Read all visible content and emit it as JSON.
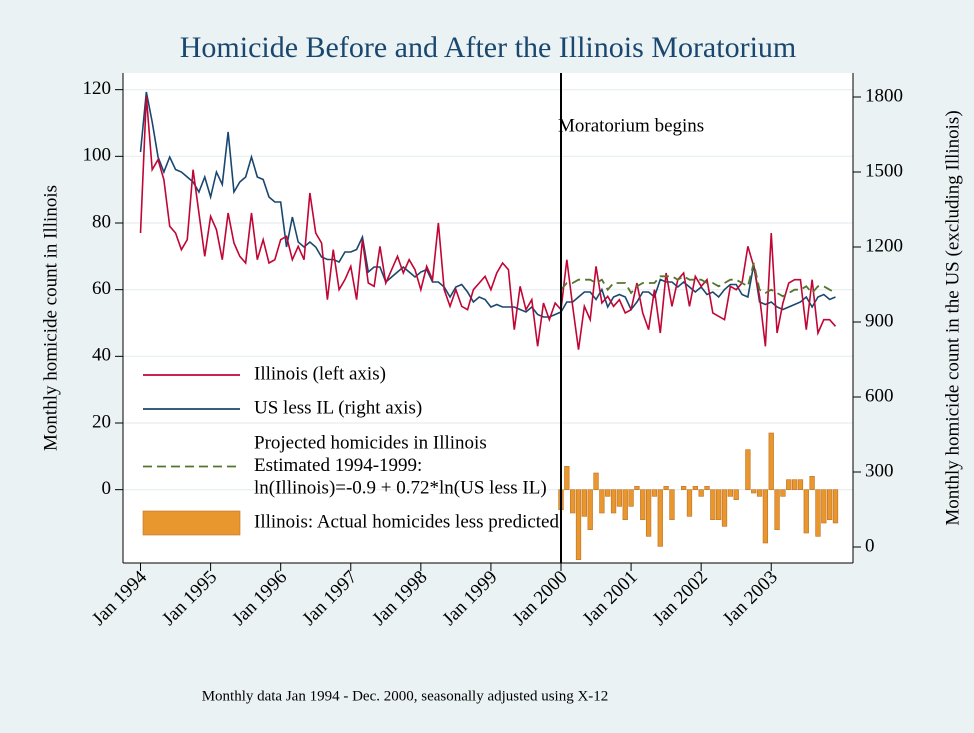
{
  "chart_data": {
    "type": "line",
    "title": "Homicide Before and After the Illinois Moratorium",
    "y_label": "Monthly homicide count in Illinois",
    "y2_label": "Monthly homicide count in the US (excluding Illinois)",
    "caption": "Monthly data Jan 1994 - Dec. 2000, seasonally adjusted using X-12",
    "annotation": {
      "text": "Moratorium begins",
      "x": "2000-01"
    },
    "grid": true,
    "legend": "bottom-left",
    "xlim": [
      "1993-10",
      "2004-03"
    ],
    "xticks": [
      {
        "value": "1994-01",
        "label": "Jan 1994"
      },
      {
        "value": "1995-01",
        "label": "Jan 1995"
      },
      {
        "value": "1996-01",
        "label": "Jan 1996"
      },
      {
        "value": "1997-01",
        "label": "Jan 1997"
      },
      {
        "value": "1998-01",
        "label": "Jan 1998"
      },
      {
        "value": "1999-01",
        "label": "Jan 1999"
      },
      {
        "value": "2000-01",
        "label": "Jan 2000"
      },
      {
        "value": "2001-01",
        "label": "Jan 2001"
      },
      {
        "value": "2002-01",
        "label": "Jan 2002"
      },
      {
        "value": "2003-01",
        "label": "Jan 2003"
      }
    ],
    "ylim": [
      -22,
      125
    ],
    "yticks": [
      0,
      20,
      40,
      60,
      80,
      100,
      120
    ],
    "y2lim": [
      -64,
      1896
    ],
    "y2ticks": [
      0,
      300,
      600,
      900,
      1200,
      1500,
      1800
    ],
    "x": [
      "1994-01",
      "1994-02",
      "1994-03",
      "1994-04",
      "1994-05",
      "1994-06",
      "1994-07",
      "1994-08",
      "1994-09",
      "1994-10",
      "1994-11",
      "1994-12",
      "1995-01",
      "1995-02",
      "1995-03",
      "1995-04",
      "1995-05",
      "1995-06",
      "1995-07",
      "1995-08",
      "1995-09",
      "1995-10",
      "1995-11",
      "1995-12",
      "1996-01",
      "1996-02",
      "1996-03",
      "1996-04",
      "1996-05",
      "1996-06",
      "1996-07",
      "1996-08",
      "1996-09",
      "1996-10",
      "1996-11",
      "1996-12",
      "1997-01",
      "1997-02",
      "1997-03",
      "1997-04",
      "1997-05",
      "1997-06",
      "1997-07",
      "1997-08",
      "1997-09",
      "1997-10",
      "1997-11",
      "1997-12",
      "1998-01",
      "1998-02",
      "1998-03",
      "1998-04",
      "1998-05",
      "1998-06",
      "1998-07",
      "1998-08",
      "1998-09",
      "1998-10",
      "1998-11",
      "1998-12",
      "1999-01",
      "1999-02",
      "1999-03",
      "1999-04",
      "1999-05",
      "1999-06",
      "1999-07",
      "1999-08",
      "1999-09",
      "1999-10",
      "1999-11",
      "1999-12",
      "2000-01",
      "2000-02",
      "2000-03",
      "2000-04",
      "2000-05",
      "2000-06",
      "2000-07",
      "2000-08",
      "2000-09",
      "2000-10",
      "2000-11",
      "2000-12",
      "2001-01",
      "2001-02",
      "2001-03",
      "2001-04",
      "2001-05",
      "2001-06",
      "2001-07",
      "2001-08",
      "2001-09",
      "2001-10",
      "2001-11",
      "2001-12",
      "2002-01",
      "2002-02",
      "2002-03",
      "2002-04",
      "2002-05",
      "2002-06",
      "2002-07",
      "2002-08",
      "2002-09",
      "2002-10",
      "2002-11",
      "2002-12",
      "2003-01",
      "2003-02",
      "2003-03",
      "2003-04",
      "2003-05",
      "2003-06",
      "2003-07",
      "2003-08",
      "2003-09",
      "2003-10",
      "2003-11",
      "2003-12"
    ],
    "series": [
      {
        "name": [
          "Illinois (left axis)"
        ],
        "type": "line",
        "color": "#c10534",
        "axis": "y",
        "values": [
          77,
          118,
          96,
          99,
          93,
          79,
          77,
          72,
          75,
          96,
          83,
          70,
          82,
          78,
          69,
          83,
          74,
          70,
          68,
          83,
          69,
          75,
          68,
          69,
          75,
          76,
          69,
          73,
          69,
          89,
          77,
          74,
          57,
          72,
          60,
          63,
          67,
          57,
          75,
          62,
          61,
          73,
          62,
          66,
          70,
          65,
          69,
          66,
          60,
          67,
          63,
          80,
          60,
          55,
          60,
          55,
          54,
          60,
          62,
          64,
          60,
          65,
          68,
          66,
          48,
          61,
          54,
          57,
          43,
          56,
          51,
          56,
          54,
          69,
          55,
          42,
          55,
          51,
          67,
          56,
          58,
          55,
          57,
          53,
          54,
          62,
          53,
          48,
          60,
          47,
          65,
          55,
          63,
          65,
          55,
          64,
          61,
          63,
          53,
          52,
          51,
          61,
          60,
          62,
          73,
          67,
          58,
          43,
          77,
          47,
          56,
          62,
          63,
          63,
          48,
          63,
          47,
          51,
          51,
          49
        ]
      },
      {
        "name": [
          "US less IL (right axis)"
        ],
        "type": "line",
        "color": "#1a476f",
        "axis": "y2",
        "values": [
          1580,
          1820,
          1700,
          1560,
          1500,
          1560,
          1510,
          1500,
          1480,
          1460,
          1420,
          1480,
          1400,
          1500,
          1450,
          1660,
          1420,
          1460,
          1480,
          1560,
          1480,
          1470,
          1400,
          1380,
          1380,
          1200,
          1320,
          1220,
          1200,
          1220,
          1200,
          1160,
          1150,
          1150,
          1140,
          1180,
          1180,
          1190,
          1240,
          1100,
          1120,
          1120,
          1060,
          1080,
          1100,
          1120,
          1100,
          1080,
          1100,
          1110,
          1060,
          1060,
          1040,
          1000,
          1040,
          1050,
          1020,
          980,
          1000,
          990,
          960,
          970,
          960,
          960,
          960,
          950,
          940,
          960,
          930,
          920,
          920,
          930,
          940,
          980,
          980,
          1000,
          1020,
          1020,
          990,
          1030,
          960,
          1000,
          1010,
          1000,
          950,
          980,
          1020,
          1020,
          1000,
          1070,
          1060,
          1060,
          1040,
          1060,
          1040,
          1020,
          1040,
          1010,
          1020,
          1000,
          1030,
          1050,
          1050,
          1010,
          1000,
          1130,
          980,
          970,
          980,
          960,
          950,
          960,
          970,
          980,
          1000,
          960,
          1000,
          1010,
          990,
          1000
        ]
      },
      {
        "name": [
          "Projected homicides in Illinois",
          "Estimated 1994-1999:",
          "ln(Illinois)=-0.9 + 0.72*ln(US less IL)"
        ],
        "type": "line",
        "dash": true,
        "color": "#55752f",
        "axis": "y",
        "values": [
          null,
          null,
          null,
          null,
          null,
          null,
          null,
          null,
          null,
          null,
          null,
          null,
          null,
          null,
          null,
          null,
          null,
          null,
          null,
          null,
          null,
          null,
          null,
          null,
          null,
          null,
          null,
          null,
          null,
          null,
          null,
          null,
          null,
          null,
          null,
          null,
          null,
          null,
          null,
          null,
          null,
          null,
          null,
          null,
          null,
          null,
          null,
          null,
          null,
          null,
          null,
          null,
          null,
          null,
          null,
          null,
          null,
          null,
          null,
          null,
          null,
          null,
          null,
          null,
          null,
          null,
          null,
          null,
          null,
          null,
          null,
          null,
          60,
          62,
          62,
          63,
          63,
          63,
          62,
          63,
          60,
          62,
          62,
          62,
          59,
          61,
          62,
          62,
          62,
          64,
          64,
          64,
          63,
          64,
          63,
          63,
          63,
          62,
          62,
          61,
          62,
          63,
          63,
          62,
          61,
          68,
          60,
          59,
          60,
          59,
          58,
          59,
          60,
          60,
          61,
          59,
          61,
          61,
          60,
          59
        ]
      },
      {
        "name": [
          "Illinois: Actual homicides less predicted"
        ],
        "type": "bar",
        "color": "#e8962e",
        "axis": "y",
        "values": [
          null,
          null,
          null,
          null,
          null,
          null,
          null,
          null,
          null,
          null,
          null,
          null,
          null,
          null,
          null,
          null,
          null,
          null,
          null,
          null,
          null,
          null,
          null,
          null,
          null,
          null,
          null,
          null,
          null,
          null,
          null,
          null,
          null,
          null,
          null,
          null,
          null,
          null,
          null,
          null,
          null,
          null,
          null,
          null,
          null,
          null,
          null,
          null,
          null,
          null,
          null,
          null,
          null,
          null,
          null,
          null,
          null,
          null,
          null,
          null,
          null,
          null,
          null,
          null,
          null,
          null,
          null,
          null,
          null,
          null,
          null,
          null,
          -6,
          7,
          -7,
          -21,
          -8,
          -12,
          5,
          -7,
          -2,
          -7,
          -5,
          -9,
          -5,
          1,
          -9,
          -14,
          -2,
          -17,
          1,
          -9,
          0,
          1,
          -8,
          1,
          -2,
          1,
          -9,
          -9,
          -11,
          -2,
          -3,
          0,
          12,
          -1,
          -2,
          -16,
          17,
          -12,
          -2,
          3,
          3,
          3,
          -13,
          4,
          -14,
          -10,
          -9,
          -10
        ]
      }
    ]
  }
}
